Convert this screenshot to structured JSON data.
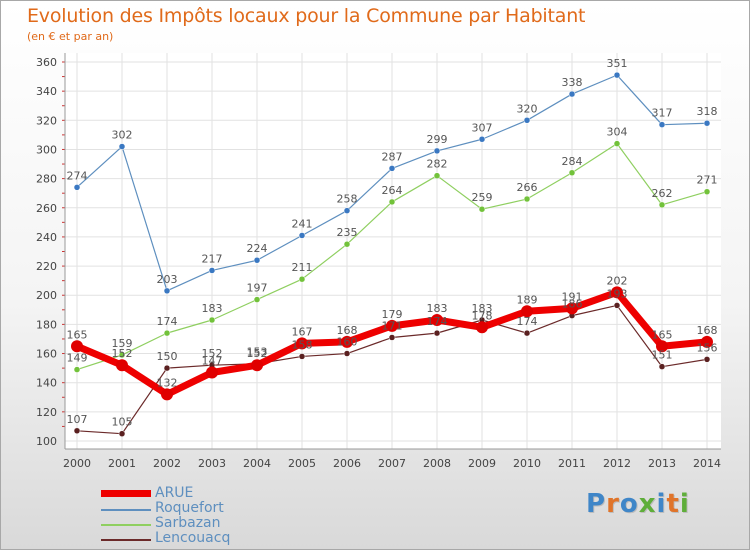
{
  "header": {
    "title": "Evolution des Impôts locaux pour la Commune par Habitant",
    "subtitle": "(en € et par an)"
  },
  "logo": {
    "text": "Proxiti",
    "letter_colors": [
      "#3f86c8",
      "#e0742a",
      "#3f86c8",
      "#5fae3a",
      "#3f86c8",
      "#e0742a",
      "#5fae3a"
    ]
  },
  "chart_data": {
    "type": "line",
    "title": "Evolution des Impôts locaux pour la Commune par Habitant",
    "ylabel": "en € et par an",
    "ylim": [
      100,
      360
    ],
    "ytick_step": 20,
    "grid": true,
    "legend_position": "bottom-left",
    "categories": [
      "2000",
      "2001",
      "2002",
      "2003",
      "2004",
      "2005",
      "2006",
      "2007",
      "2008",
      "2009",
      "2010",
      "2011",
      "2012",
      "2013",
      "2014"
    ],
    "series": [
      {
        "name": "Roquefort",
        "color": "#5e8fbf",
        "marker": "#3a78c2",
        "width": 1.2,
        "values": [
          274,
          302,
          203,
          217,
          224,
          241,
          258,
          287,
          299,
          307,
          320,
          338,
          351,
          317,
          318
        ]
      },
      {
        "name": "Sarbazan",
        "color": "#8fcf60",
        "marker": "#72c23a",
        "width": 1.2,
        "values": [
          149,
          159,
          174,
          183,
          197,
          211,
          235,
          264,
          282,
          259,
          266,
          284,
          304,
          262,
          271
        ]
      },
      {
        "name": "Lencouacq",
        "color": "#6b2a2a",
        "marker": "#5a2020",
        "width": 1.2,
        "values": [
          107,
          105,
          150,
          152,
          153,
          158,
          160,
          171,
          174,
          183,
          174,
          186,
          193,
          151,
          156
        ]
      },
      {
        "name": "ARUE",
        "color": "#ee0000",
        "marker": "#e00000",
        "width": 7,
        "values": [
          165,
          152,
          132,
          147,
          152,
          167,
          168,
          179,
          183,
          178,
          189,
          191,
          202,
          165,
          168
        ]
      }
    ],
    "legend_order": [
      "ARUE",
      "Roquefort",
      "Sarbazan",
      "Lencouacq"
    ]
  }
}
